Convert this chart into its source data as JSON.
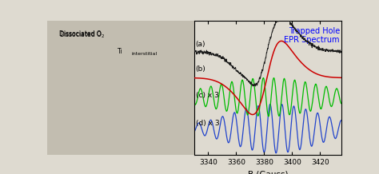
{
  "title": "Trapped Hole\nEPR Spectrum",
  "title_color": "#0000ff",
  "xlabel": "B (Gauss)",
  "x_min": 3330,
  "x_max": 3435,
  "x_ticks": [
    3340,
    3360,
    3380,
    3400,
    3420
  ],
  "curve_a_color": "#1a1a1a",
  "curve_b_color": "#cc0000",
  "curve_c_color": "#00bb00",
  "curve_d_color": "#2244cc",
  "label_a": "(a)",
  "label_b": "(b)",
  "label_c": "(c) x 3",
  "label_d": "(d) x 3",
  "background_plot": "#dedad0",
  "background_left": "#c8c8c8",
  "figsize": [
    4.74,
    2.18
  ],
  "dpi": 100
}
